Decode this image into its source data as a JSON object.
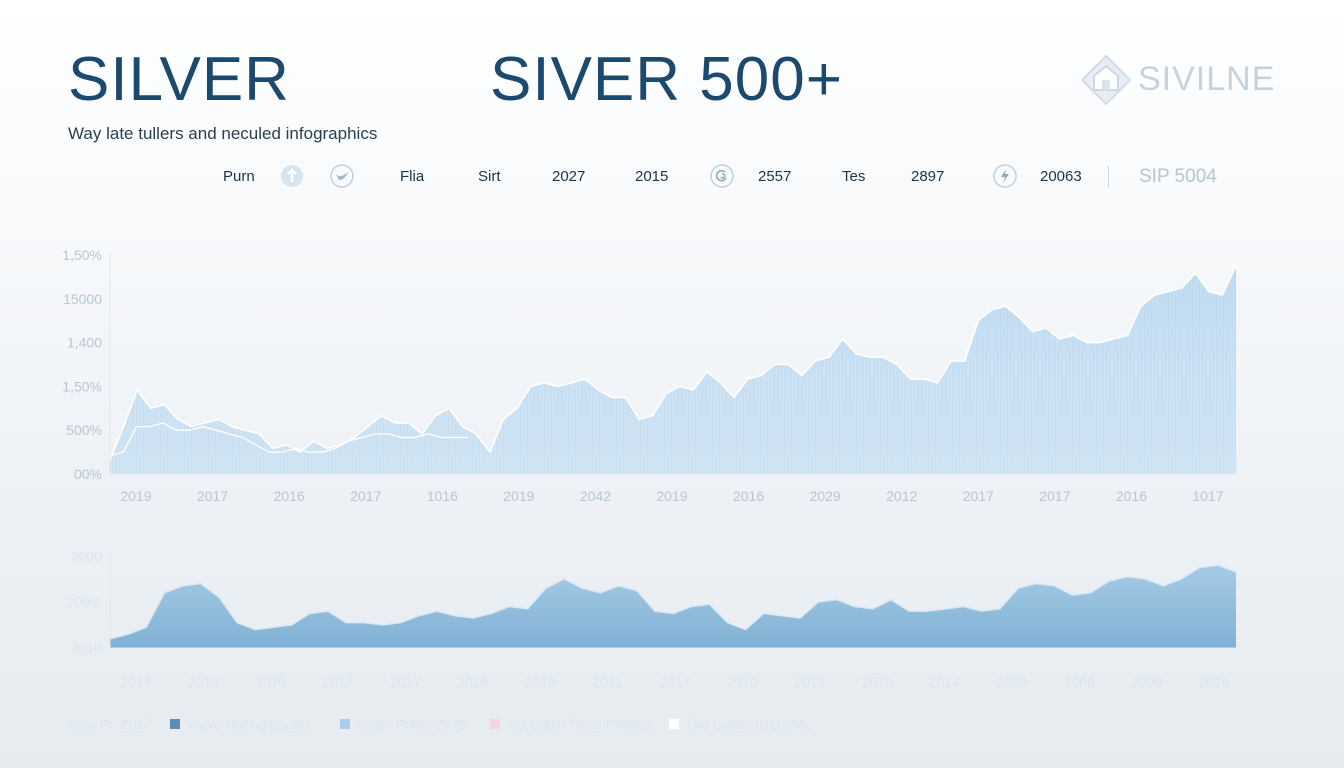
{
  "header": {
    "title": "SILVER",
    "title_secondary": "SIVER 500+",
    "subtitle": "Way late tullers and neculed infographics",
    "logo_text": "SIVILNE",
    "logo_icon": "house-diamond-icon"
  },
  "stats": [
    {
      "label": "Purn",
      "icon": null
    },
    {
      "label": "",
      "icon": "arrow-up-icon"
    },
    {
      "label": "",
      "icon": "bird-icon"
    },
    {
      "label": "Flia",
      "icon": null
    },
    {
      "label": "Sirt",
      "icon": null
    },
    {
      "label": "2027",
      "icon": null
    },
    {
      "label": "2015",
      "icon": null
    },
    {
      "label": "",
      "icon": "swirl-icon"
    },
    {
      "label": "2557",
      "icon": null
    },
    {
      "label": "Tes",
      "icon": null
    },
    {
      "label": "2897",
      "icon": null
    },
    {
      "label": "",
      "icon": "lightning-icon"
    },
    {
      "label": "20063",
      "icon": null
    },
    {
      "label": "SIP 5004",
      "icon": null
    }
  ],
  "colors": {
    "title": "#1c4a6e",
    "area_top": "#b9d7ef",
    "area_bottom": "#7fb1d3",
    "legend_1": "#5b8db5",
    "legend_2": "#a9cdea",
    "legend_3": "#f4d6dd",
    "legend_4": "#ffffff"
  },
  "chart_data": [
    {
      "type": "area",
      "y_tick_labels": [
        "1,50%",
        "15000",
        "1,400",
        "1,50%",
        "500%",
        "00%"
      ],
      "x_tick_labels": [
        "2019",
        "2017",
        "2016",
        "2017",
        "1016",
        "2019",
        "2042",
        "2019",
        "2016",
        "2029",
        "2012",
        "2017",
        "2017",
        "2016",
        "1017"
      ],
      "ylim": [
        0,
        6
      ],
      "grid": false,
      "series": [
        {
          "values": [
            0.4,
            1.3,
            2.3,
            1.8,
            1.9,
            1.5,
            1.3,
            1.4,
            1.5,
            1.3,
            1.2,
            1.1,
            0.7,
            0.8,
            0.6,
            0.9,
            0.7,
            0.8,
            1.0,
            1.3,
            1.6,
            1.4,
            1.4,
            1.1,
            1.6,
            1.8,
            1.3,
            1.1,
            0.6,
            1.5,
            1.8,
            2.4,
            2.5,
            2.4,
            2.5,
            2.6,
            2.3,
            2.1,
            2.1,
            1.5,
            1.6,
            2.2,
            2.4,
            2.3,
            2.8,
            2.5,
            2.1,
            2.6,
            2.7,
            3.0,
            3.0,
            2.7,
            3.1,
            3.2,
            3.7,
            3.3,
            3.2,
            3.2,
            3.0,
            2.6,
            2.6,
            2.5,
            3.1,
            3.1,
            4.2,
            4.5,
            4.6,
            4.3,
            3.9,
            4.0,
            3.7,
            3.8,
            3.6,
            3.6,
            3.7,
            3.8,
            4.6,
            4.9,
            5.0,
            5.1,
            5.5,
            5.0,
            4.9,
            5.7
          ]
        },
        {
          "values": [
            0.5,
            0.6,
            1.3,
            1.3,
            1.4,
            1.2,
            1.2,
            1.3,
            1.2,
            1.1,
            1.0,
            0.8,
            0.6,
            0.6,
            0.7,
            0.6,
            0.6,
            0.7,
            0.9,
            1.0,
            1.1,
            1.1,
            1.0,
            1.0,
            1.1,
            1.0,
            1.0,
            1.0
          ]
        }
      ]
    },
    {
      "type": "area",
      "y_tick_labels": [
        "3000",
        "200%",
        "2010"
      ],
      "x_tick_labels": [
        "2019",
        "2019",
        "2075",
        "2017",
        "2017",
        "2019",
        "2019",
        "2011",
        "2017",
        "2010",
        "2019",
        "2070",
        "2014",
        "2099",
        "9006",
        "3009",
        "2016"
      ],
      "ylim": [
        0,
        4
      ],
      "grid": false,
      "series": [
        {
          "values": [
            0.4,
            0.6,
            0.9,
            2.4,
            2.7,
            2.8,
            2.2,
            1.1,
            0.8,
            0.9,
            1.0,
            1.5,
            1.6,
            1.1,
            1.1,
            1.0,
            1.1,
            1.4,
            1.6,
            1.4,
            1.3,
            1.5,
            1.8,
            1.7,
            2.6,
            3.0,
            2.6,
            2.4,
            2.7,
            2.5,
            1.6,
            1.5,
            1.8,
            1.9,
            1.1,
            0.8,
            1.5,
            1.4,
            1.3,
            2.0,
            2.1,
            1.8,
            1.7,
            2.1,
            1.6,
            1.6,
            1.7,
            1.8,
            1.6,
            1.7,
            2.6,
            2.8,
            2.7,
            2.3,
            2.4,
            2.9,
            3.1,
            3.0,
            2.7,
            3.0,
            3.5,
            3.6,
            3.3
          ]
        }
      ]
    }
  ],
  "legend": [
    {
      "label": "Slue Pr, 2017",
      "swatch": null
    },
    {
      "label": "Vlevs Haprigirigutes",
      "swatch": "legend_1"
    },
    {
      "label": "Silver Price: 2076",
      "swatch": "legend_2"
    },
    {
      "label": "Ny Copin Tacts Pmices",
      "swatch": "legend_3"
    },
    {
      "label": "The Landi: (S106ML",
      "swatch": "legend_4"
    }
  ]
}
